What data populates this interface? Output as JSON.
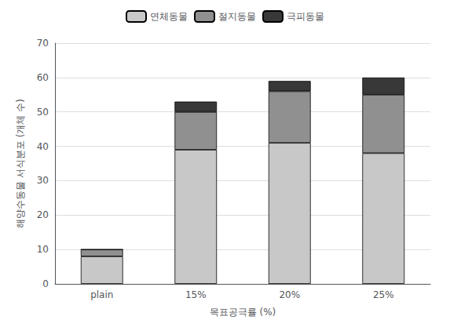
{
  "chart_data": {
    "type": "bar",
    "stacked": true,
    "categories": [
      "plain",
      "15%",
      "20%",
      "25%"
    ],
    "series": [
      {
        "name": "연체동물",
        "color": "#C8C8C8",
        "values": [
          8,
          39,
          41,
          38
        ]
      },
      {
        "name": "절지동물",
        "color": "#909090",
        "values": [
          2,
          11,
          15,
          17
        ]
      },
      {
        "name": "극피동물",
        "color": "#383838",
        "values": [
          0,
          3,
          3,
          5
        ]
      }
    ],
    "xlabel": "목표공극률 (%)",
    "ylabel": "해양수동물 서식분포 (개체 수)",
    "ylim": [
      0,
      70
    ],
    "yticks": [
      0,
      10,
      20,
      30,
      40,
      50,
      60,
      70
    ],
    "grid": true,
    "legend": "top"
  }
}
